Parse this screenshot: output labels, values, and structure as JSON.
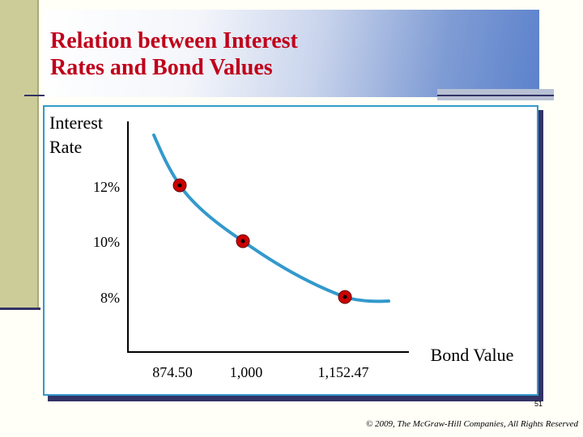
{
  "slide": {
    "title": "Relation between Interest Rates and Bond Values",
    "page_number": "51",
    "copyright": "© 2009, The McGraw-Hill Companies, All Rights Reserved"
  },
  "colors": {
    "title": "#c0001a",
    "curve": "#3399cc",
    "marker_fill": "#cc0000",
    "frame": "#3399cc",
    "shadow": "#333366"
  },
  "chart_data": {
    "type": "line",
    "title": "",
    "ylabel_lines": [
      "Interest",
      "Rate"
    ],
    "xlabel": "Bond Value",
    "x_ticks": [
      "874.50",
      "1,000",
      "1,152.47"
    ],
    "y_ticks": [
      "12%",
      "10%",
      "8%"
    ],
    "points": [
      {
        "x": 874.5,
        "y": 12
      },
      {
        "x": 1000,
        "y": 10
      },
      {
        "x": 1152.47,
        "y": 8
      }
    ],
    "grid": false,
    "legend": "none"
  }
}
